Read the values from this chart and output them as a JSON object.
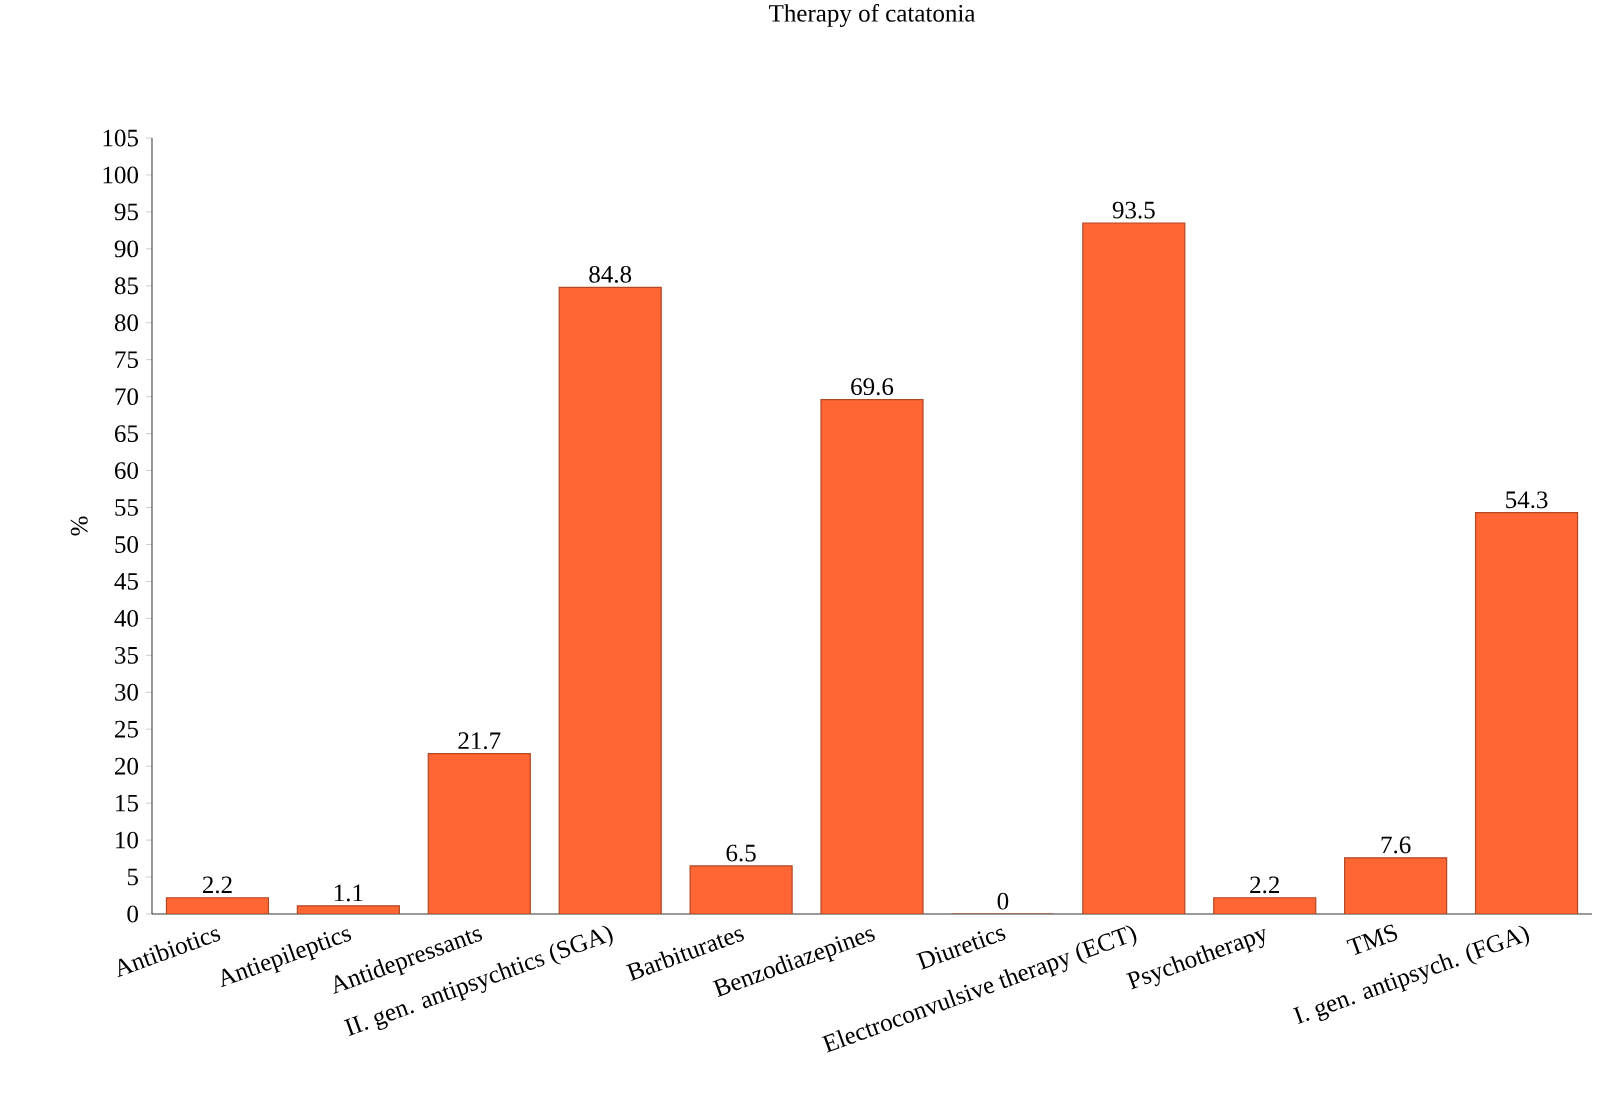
{
  "chart_data": {
    "type": "bar",
    "title": "Therapy of catatonia",
    "ylabel": "%",
    "categories": [
      "Antibiotics",
      "Antiepileptics",
      "Antidepressants",
      "II. gen. antipsychtics (SGA)",
      "Barbiturates",
      "Benzodiazepines",
      "Diuretics",
      "Electroconvulsive therapy (ECT)",
      "Psychotherapy",
      "TMS",
      "I. gen. antipsych. (FGA)"
    ],
    "values": [
      2.2,
      1.1,
      21.7,
      84.8,
      6.5,
      69.6,
      0,
      93.5,
      2.2,
      7.6,
      54.3
    ],
    "color": "#ff6633",
    "ylim": [
      0,
      105
    ],
    "yticks": [
      0,
      5,
      10,
      15,
      20,
      25,
      30,
      35,
      40,
      45,
      50,
      55,
      60,
      65,
      70,
      75,
      80,
      85,
      90,
      95,
      100,
      105
    ],
    "data_labels": true
  }
}
